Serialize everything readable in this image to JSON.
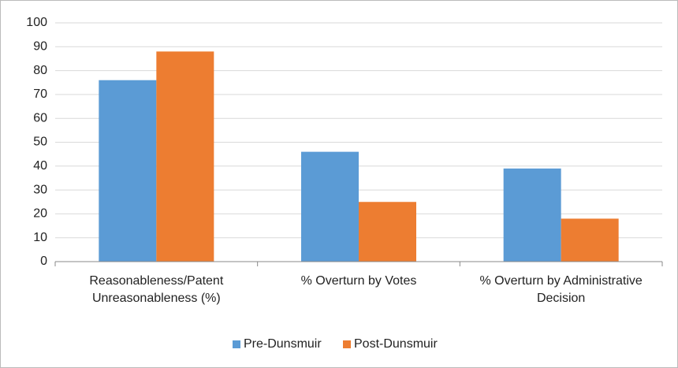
{
  "chart_data": {
    "type": "bar",
    "categories": [
      "Reasonableness/Patent Unreasonableness (%)",
      "% Overturn by Votes",
      "% Overturn by Administrative Decision"
    ],
    "series": [
      {
        "name": "Pre-Dunsmuir",
        "color": "#5b9bd5",
        "values": [
          76,
          46,
          39
        ]
      },
      {
        "name": "Post-Dunsmuir",
        "color": "#ed7d31",
        "values": [
          88,
          25,
          18
        ]
      }
    ],
    "ylim": [
      0,
      100
    ],
    "yticks": [
      0,
      10,
      20,
      30,
      40,
      50,
      60,
      70,
      80,
      90,
      100
    ],
    "grid": true,
    "legend": "bottom"
  }
}
